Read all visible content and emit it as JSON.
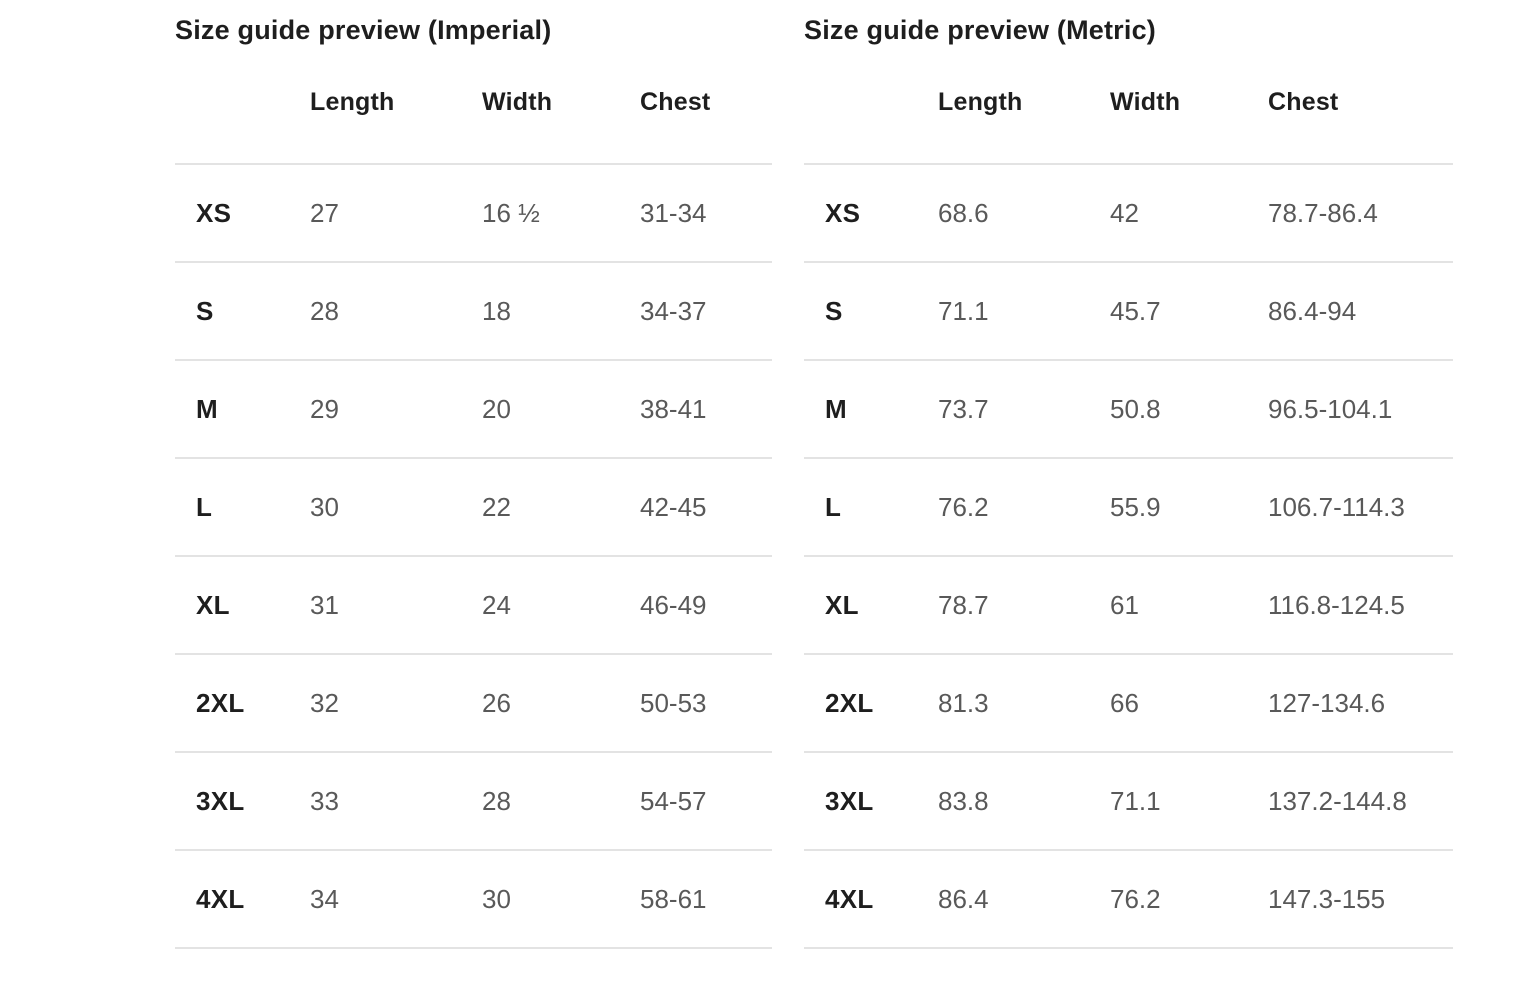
{
  "colors": {
    "background": "#ffffff",
    "heading_text": "#1e1e1e",
    "value_text": "#595959",
    "divider": "#e3e3e3"
  },
  "tables": [
    {
      "title": "Size guide preview (Imperial)",
      "columns": [
        "",
        "Length",
        "Width",
        "Chest"
      ],
      "rows": [
        {
          "size": "XS",
          "length": "27",
          "width": "16 ½",
          "chest": "31-34"
        },
        {
          "size": "S",
          "length": "28",
          "width": "18",
          "chest": "34-37"
        },
        {
          "size": "M",
          "length": "29",
          "width": "20",
          "chest": "38-41"
        },
        {
          "size": "L",
          "length": "30",
          "width": "22",
          "chest": "42-45"
        },
        {
          "size": "XL",
          "length": "31",
          "width": "24",
          "chest": "46-49"
        },
        {
          "size": "2XL",
          "length": "32",
          "width": "26",
          "chest": "50-53"
        },
        {
          "size": "3XL",
          "length": "33",
          "width": "28",
          "chest": "54-57"
        },
        {
          "size": "4XL",
          "length": "34",
          "width": "30",
          "chest": "58-61"
        }
      ]
    },
    {
      "title": "Size guide preview (Metric)",
      "columns": [
        "",
        "Length",
        "Width",
        "Chest"
      ],
      "rows": [
        {
          "size": "XS",
          "length": "68.6",
          "width": "42",
          "chest": "78.7-86.4"
        },
        {
          "size": "S",
          "length": "71.1",
          "width": "45.7",
          "chest": "86.4-94"
        },
        {
          "size": "M",
          "length": "73.7",
          "width": "50.8",
          "chest": "96.5-104.1"
        },
        {
          "size": "L",
          "length": "76.2",
          "width": "55.9",
          "chest": "106.7-114.3"
        },
        {
          "size": "XL",
          "length": "78.7",
          "width": "61",
          "chest": "116.8-124.5"
        },
        {
          "size": "2XL",
          "length": "81.3",
          "width": "66",
          "chest": "127-134.6"
        },
        {
          "size": "3XL",
          "length": "83.8",
          "width": "71.1",
          "chest": "137.2-144.8"
        },
        {
          "size": "4XL",
          "length": "86.4",
          "width": "76.2",
          "chest": "147.3-155"
        }
      ]
    }
  ]
}
